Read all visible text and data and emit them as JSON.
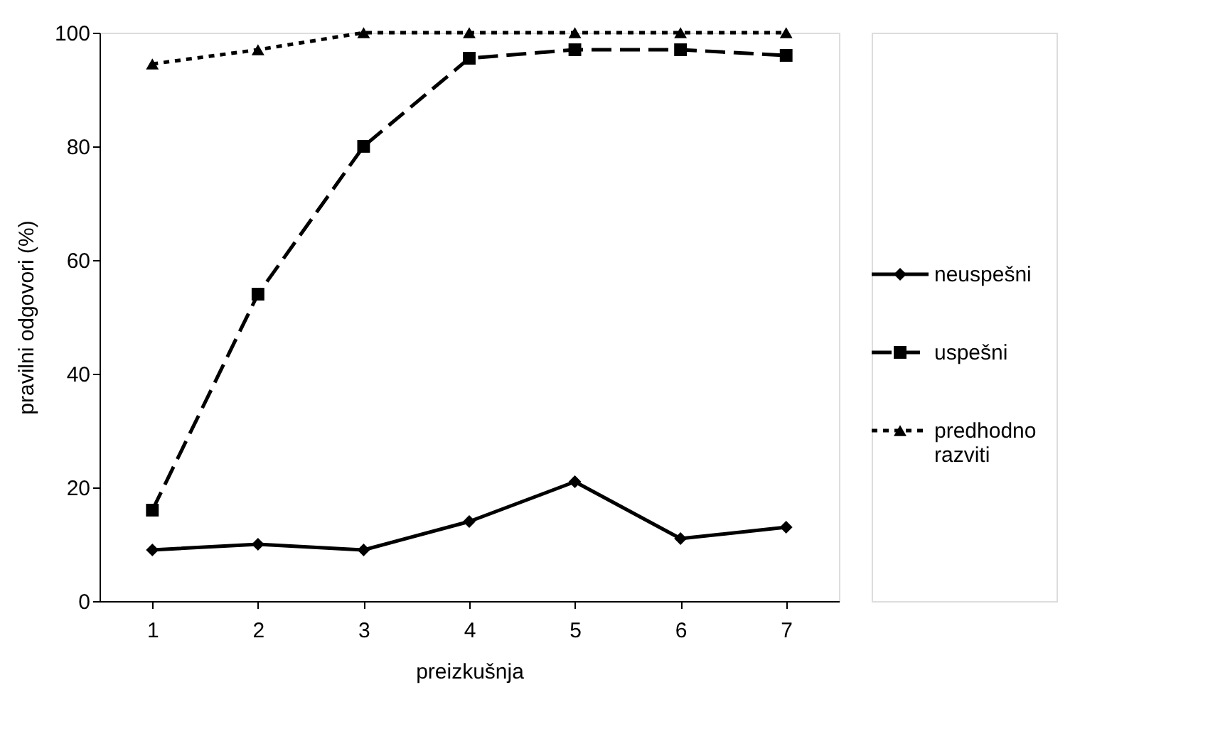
{
  "chart_data": {
    "type": "line",
    "xlabel": "preizkušnja",
    "ylabel": "pravilni odgovori (%)",
    "categories": [
      "1",
      "2",
      "3",
      "4",
      "5",
      "6",
      "7"
    ],
    "ylim": [
      0,
      100
    ],
    "yticks": [
      0,
      20,
      40,
      60,
      80,
      100
    ],
    "grid": false,
    "legend": "right",
    "series": [
      {
        "name": "neuspešni",
        "color": "#000000",
        "marker": "diamond",
        "line_style": "solid",
        "values": [
          9,
          10,
          9,
          14,
          21,
          11,
          13
        ]
      },
      {
        "name": "uspešni",
        "color": "#000000",
        "marker": "square",
        "line_style": "dashed",
        "values": [
          16,
          54,
          80,
          95.5,
          97,
          97,
          96
        ]
      },
      {
        "name": "predhodno razviti",
        "color": "#000000",
        "marker": "triangle",
        "line_style": "dotted",
        "values": [
          94.5,
          97,
          100,
          100,
          100,
          100,
          100
        ]
      }
    ]
  }
}
